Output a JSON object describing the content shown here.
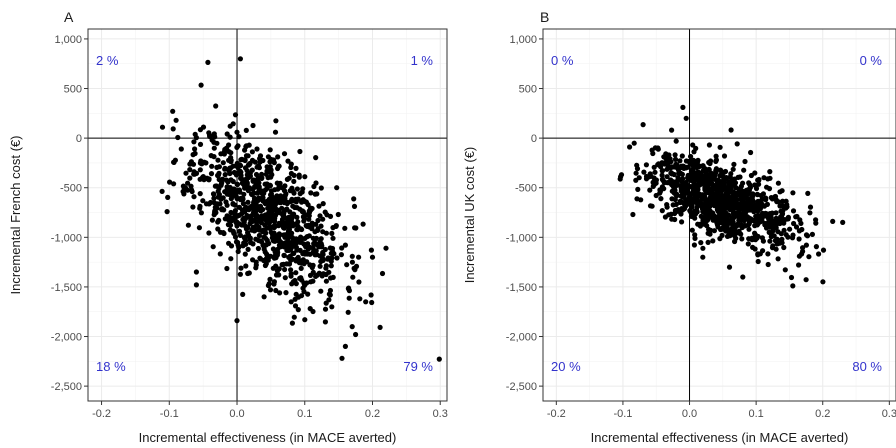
{
  "colors": {
    "quadrant_text": "#3333cc",
    "point": "#000000",
    "grid": "#ebebeb",
    "panel_border": "#333333"
  },
  "chart_data": [
    {
      "type": "scatter",
      "panel_label": "A",
      "xlabel": "Incremental effectiveness (in MACE averted)",
      "ylabel": "Incremental French cost (€)",
      "xlim": [
        -0.22,
        0.31
      ],
      "ylim": [
        -2650,
        1100
      ],
      "xticks": [
        -0.2,
        -0.1,
        0.0,
        0.1,
        0.2,
        0.3
      ],
      "xtick_labels": [
        "-0.2",
        "-0.1",
        "0.0",
        "0.1",
        "0.2",
        "0.3"
      ],
      "yticks": [
        -2500,
        -2000,
        -1500,
        -1000,
        -500,
        0,
        500,
        1000
      ],
      "ytick_labels": [
        "-2,500",
        "-2,000",
        "-1,500",
        "-1,000",
        "-500",
        "0",
        "500",
        "1,000"
      ],
      "grid": true,
      "quadrants": {
        "top_left": "2 %",
        "top_right": "1 %",
        "bottom_left": "18 %",
        "bottom_right": "79 %"
      },
      "cloud": {
        "n": 1000,
        "x_mean": 0.045,
        "x_sd": 0.055,
        "y_mean": -760,
        "y_sd": 380,
        "corr": -0.55
      },
      "x": [
        -0.095,
        -0.09,
        0.005,
        -0.01,
        0.0,
        0.17,
        0.175,
        0.16,
        0.155,
        0.22,
        0.2,
        0.18,
        -0.06,
        0.19,
        0.0,
        -0.06,
        0.1,
        0.14,
        0.04,
        0.08
      ],
      "y": [
        270,
        180,
        800,
        120,
        60,
        -1900,
        -1980,
        -2100,
        -2220,
        -1110,
        -1200,
        -1450,
        -1350,
        -1650,
        -1840,
        -1480,
        -1830,
        -1700,
        -1600,
        -1650
      ]
    },
    {
      "type": "scatter",
      "panel_label": "B",
      "xlabel": "Incremental effectiveness (in MACE averted)",
      "ylabel": "Incremental UK cost (€)",
      "xlim": [
        -0.22,
        0.31
      ],
      "ylim": [
        -2650,
        1100
      ],
      "xticks": [
        -0.2,
        -0.1,
        0.0,
        0.1,
        0.2,
        0.3
      ],
      "xtick_labels": [
        "-0.2",
        "-0.1",
        "0.0",
        "0.1",
        "0.2",
        "0.3"
      ],
      "yticks": [
        -2500,
        -2000,
        -1500,
        -1000,
        -500,
        0,
        500,
        1000
      ],
      "ytick_labels": [
        "-2,500",
        "-2,000",
        "-1,500",
        "-1,000",
        "-500",
        "0",
        "500",
        "1,000"
      ],
      "grid": true,
      "quadrants": {
        "top_left": "0 %",
        "top_right": "0 %",
        "bottom_left": "20 %",
        "bottom_right": "80 %"
      },
      "cloud": {
        "n": 1000,
        "x_mean": 0.045,
        "x_sd": 0.055,
        "y_mean": -620,
        "y_sd": 230,
        "corr": -0.6
      },
      "x": [
        -0.01,
        -0.005,
        0.215,
        0.23,
        0.165,
        0.155,
        0.13,
        -0.09,
        -0.085,
        0.08,
        0.06,
        0.02
      ],
      "y": [
        310,
        200,
        -840,
        -850,
        -1190,
        -1490,
        -1120,
        -90,
        -770,
        -1400,
        -1300,
        -1200
      ]
    }
  ]
}
